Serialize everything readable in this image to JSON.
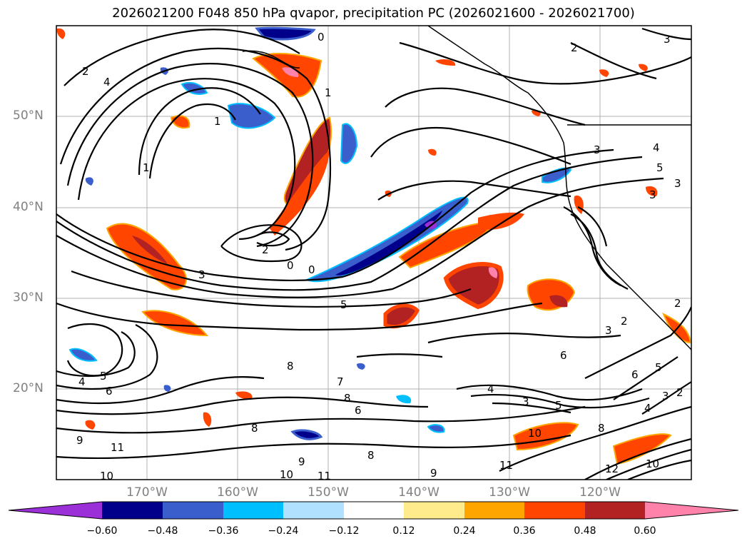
{
  "title": "2026021200 F048 850 hPa qvapor, precipitation PC (2026021600 - 2026021700)",
  "lat_labels": [
    "50°N",
    "40°N",
    "30°N",
    "20°N"
  ],
  "lon_labels": [
    "170°W",
    "160°W",
    "150°W",
    "140°W",
    "130°W",
    "120°W"
  ],
  "colorbar": {
    "colors": [
      "#9b30d8",
      "#00008b",
      "#3a5fcd",
      "#00bfff",
      "#b0e2ff",
      "#ffffff",
      "#ffeb8c",
      "#ffa500",
      "#ff4500",
      "#b22222",
      "#ff82ab"
    ],
    "tick_labels": [
      "−0.60",
      "−0.48",
      "−0.36",
      "−0.24",
      "−0.12",
      "0.12",
      "0.24",
      "0.36",
      "0.48",
      "0.60"
    ]
  },
  "contour_labels": [
    "2",
    "4",
    "1",
    "1",
    "1",
    "0",
    "0",
    "2",
    "0",
    "3",
    "5",
    "4",
    "5",
    "6",
    "9",
    "11",
    "10",
    "8",
    "7",
    "6",
    "8",
    "8",
    "8",
    "9",
    "10",
    "11",
    "9",
    "3",
    "5",
    "4",
    "6",
    "10",
    "11",
    "12",
    "10",
    "8",
    "2",
    "3",
    "6",
    "5",
    "4",
    "3",
    "2",
    "2",
    "3",
    "3",
    "5",
    "3",
    "4",
    "3",
    "2"
  ]
}
